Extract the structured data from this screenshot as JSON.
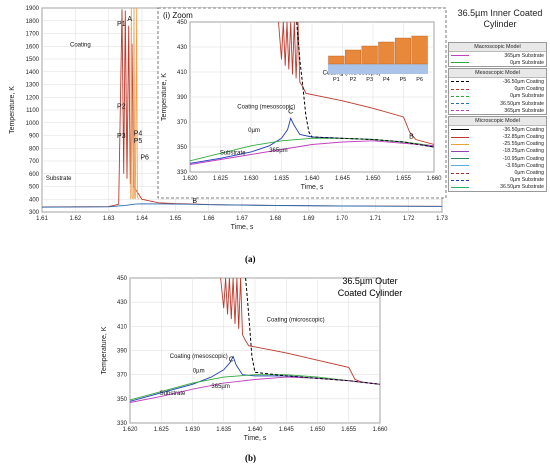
{
  "figure": {
    "title_a": "36.5µm Inner Coated Cylinder",
    "title_b": "36.5µm Outer Coated Cylinder",
    "caption_a": "(a)",
    "caption_b": "(b)",
    "zoom_title": "(i) Zoom"
  },
  "chart_data": [
    {
      "id": "main",
      "type": "line",
      "xlabel": "Time, s",
      "ylabel": "Temperature, K",
      "xlim": [
        1.61,
        1.73
      ],
      "ylim": [
        300,
        1900
      ],
      "xticks": [
        1.61,
        1.62,
        1.63,
        1.64,
        1.65,
        1.66,
        1.67,
        1.68,
        1.69,
        1.7,
        1.71,
        1.72,
        1.73
      ],
      "yticks": [
        300,
        400,
        500,
        600,
        700,
        800,
        900,
        1000,
        1100,
        1200,
        1300,
        1400,
        1500,
        1600,
        1700,
        1800,
        1900
      ],
      "grid": true,
      "annotations": [
        {
          "text": "A",
          "x": 1.6363,
          "y": 1800
        },
        {
          "text": "P1",
          "x": 1.6338,
          "y": 1760
        },
        {
          "text": "P2",
          "x": 1.6338,
          "y": 1110
        },
        {
          "text": "P3",
          "x": 1.6338,
          "y": 880
        },
        {
          "text": "P4",
          "x": 1.6388,
          "y": 900
        },
        {
          "text": "P5",
          "x": 1.6388,
          "y": 840
        },
        {
          "text": "P6",
          "x": 1.6408,
          "y": 710
        },
        {
          "text": "B",
          "x": 1.6558,
          "y": 370
        },
        {
          "text": "Coating",
          "x": 1.6215,
          "y": 1600
        },
        {
          "text": "Substrate",
          "x": 1.615,
          "y": 550
        }
      ],
      "series": [
        {
          "name": "Coating",
          "color": "#c0392b",
          "x": [
            1.61,
            1.63,
            1.633,
            1.634,
            1.6345,
            1.635,
            1.6355,
            1.636,
            1.6365,
            1.637,
            1.6375,
            1.638,
            1.64,
            1.645,
            1.65,
            1.6558,
            1.66,
            1.68,
            1.7,
            1.73
          ],
          "y": [
            340,
            342,
            360,
            1890,
            600,
            1880,
            560,
            1760,
            520,
            1620,
            500,
            480,
            400,
            372,
            366,
            362,
            358,
            352,
            348,
            345
          ]
        },
        {
          "name": "Substrate",
          "color": "#2b6cb0",
          "x": [
            1.61,
            1.63,
            1.635,
            1.638,
            1.64,
            1.65,
            1.6558,
            1.66,
            1.68,
            1.7,
            1.73
          ],
          "y": [
            338,
            341,
            352,
            362,
            364,
            362,
            360,
            357,
            351,
            347,
            344
          ]
        },
        {
          "name": "Coating peaks",
          "color": "#f0a050",
          "x": [
            1.6366,
            1.6368,
            1.637,
            1.6374,
            1.6376,
            1.6378,
            1.638,
            1.6384,
            1.6386,
            1.639
          ],
          "y": [
            400,
            1900,
            420,
            400,
            1900,
            420,
            400,
            1900,
            420,
            400
          ]
        }
      ]
    },
    {
      "id": "zoom",
      "type": "line",
      "xlabel": "Time, s",
      "ylabel": "Temperature, K",
      "xlim": [
        1.62,
        1.66
      ],
      "ylim": [
        330,
        450
      ],
      "xticks": [
        1.62,
        1.625,
        1.63,
        1.635,
        1.64,
        1.645,
        1.65,
        1.655,
        1.66
      ],
      "yticks": [
        330,
        350,
        370,
        390,
        410,
        430,
        450
      ],
      "grid": true,
      "annotations": [
        {
          "text": "Coating (microscopic)",
          "x": 1.6465,
          "y": 408
        },
        {
          "text": "Coating (mesoscopic)",
          "x": 1.6325,
          "y": 381
        },
        {
          "text": "C",
          "x": 1.6365,
          "y": 377
        },
        {
          "text": "0µm",
          "x": 1.6305,
          "y": 362
        },
        {
          "text": "365µm",
          "x": 1.6345,
          "y": 346
        },
        {
          "text": "Substrate",
          "x": 1.627,
          "y": 344
        },
        {
          "text": "B",
          "x": 1.6563,
          "y": 357
        }
      ],
      "inset_labels": [
        "P1",
        "P2",
        "P3",
        "P4",
        "P5",
        "P6"
      ],
      "series": [
        {
          "name": "Coating (microscopic)",
          "color": "#c0392b",
          "x": [
            1.6345,
            1.635,
            1.6353,
            1.6356,
            1.6359,
            1.6362,
            1.6365,
            1.6368,
            1.6371,
            1.6374,
            1.6377,
            1.638,
            1.6385,
            1.639,
            1.645,
            1.65,
            1.655,
            1.656,
            1.657,
            1.66
          ],
          "y": [
            450,
            420,
            450,
            415,
            450,
            412,
            450,
            408,
            450,
            405,
            450,
            402,
            398,
            393,
            387,
            381,
            374,
            362,
            356,
            352
          ]
        },
        {
          "name": "Coating (mesoscopic)",
          "color": "#1f3fbf",
          "x": [
            1.62,
            1.625,
            1.63,
            1.633,
            1.635,
            1.636,
            1.6365,
            1.637,
            1.638,
            1.64,
            1.645,
            1.65,
            1.655,
            1.66
          ],
          "y": [
            337,
            341,
            346,
            351,
            357,
            364,
            373,
            368,
            360,
            358,
            357,
            356,
            354,
            350
          ]
        },
        {
          "name": "0µm Substrate",
          "color": "#2eaa3a",
          "x": [
            1.62,
            1.625,
            1.63,
            1.635,
            1.64,
            1.645,
            1.65,
            1.655,
            1.66
          ],
          "y": [
            339,
            345,
            351,
            355,
            357,
            357,
            356,
            354,
            351
          ]
        },
        {
          "name": "365µm Substrate",
          "color": "#c040c0",
          "x": [
            1.62,
            1.625,
            1.63,
            1.635,
            1.64,
            1.645,
            1.65,
            1.655,
            1.66
          ],
          "y": [
            336,
            340,
            344,
            348,
            352,
            354,
            355,
            353,
            351
          ]
        },
        {
          "name": "Macroscopic Coating",
          "color": "#000000",
          "dash": true,
          "x": [
            1.6375,
            1.638,
            1.6385,
            1.639,
            1.6395,
            1.64,
            1.645,
            1.65,
            1.655,
            1.66
          ],
          "y": [
            450,
            420,
            398,
            375,
            362,
            358,
            357,
            356,
            354,
            350
          ]
        }
      ]
    },
    {
      "id": "bottom",
      "type": "line",
      "xlabel": "Time, s",
      "ylabel": "Temperature, K",
      "xlim": [
        1.62,
        1.66
      ],
      "ylim": [
        330,
        450
      ],
      "xticks": [
        1.62,
        1.625,
        1.63,
        1.635,
        1.64,
        1.645,
        1.65,
        1.655,
        1.66
      ],
      "yticks": [
        330,
        350,
        370,
        390,
        410,
        430,
        450
      ],
      "grid": true,
      "annotations": [
        {
          "text": "Coating (microscopic)",
          "x": 1.6465,
          "y": 414
        },
        {
          "text": "Coating (mesoscopic)",
          "x": 1.631,
          "y": 384
        },
        {
          "text": "C",
          "x": 1.6362,
          "y": 381
        },
        {
          "text": "0µm",
          "x": 1.631,
          "y": 372
        },
        {
          "text": "365µm",
          "x": 1.6345,
          "y": 359
        },
        {
          "text": "Substrate",
          "x": 1.6268,
          "y": 353
        }
      ],
      "series": [
        {
          "name": "Coating (microscopic)",
          "color": "#c0392b",
          "x": [
            1.6345,
            1.635,
            1.6353,
            1.6356,
            1.6359,
            1.6362,
            1.6365,
            1.6368,
            1.6371,
            1.6374,
            1.6377,
            1.638,
            1.6385,
            1.639,
            1.645,
            1.65,
            1.655,
            1.656,
            1.657,
            1.66
          ],
          "y": [
            450,
            425,
            450,
            420,
            450,
            416,
            450,
            412,
            450,
            408,
            450,
            403,
            398,
            394,
            388,
            382,
            376,
            366,
            364,
            362
          ]
        },
        {
          "name": "Coating (mesoscopic)",
          "color": "#1f3fbf",
          "x": [
            1.62,
            1.625,
            1.63,
            1.633,
            1.635,
            1.636,
            1.6365,
            1.637,
            1.638,
            1.64,
            1.645,
            1.65,
            1.655,
            1.66
          ],
          "y": [
            348,
            355,
            362,
            368,
            374,
            380,
            385,
            378,
            370,
            369,
            369,
            367,
            365,
            362
          ]
        },
        {
          "name": "0µm Substrate",
          "color": "#2eaa3a",
          "x": [
            1.62,
            1.625,
            1.63,
            1.635,
            1.64,
            1.645,
            1.65,
            1.655,
            1.66
          ],
          "y": [
            349,
            356,
            363,
            368,
            370,
            370,
            368,
            365,
            362
          ]
        },
        {
          "name": "365µm Substrate",
          "color": "#c040c0",
          "x": [
            1.62,
            1.625,
            1.63,
            1.635,
            1.64,
            1.645,
            1.65,
            1.655,
            1.66
          ],
          "y": [
            347,
            352,
            358,
            363,
            366,
            368,
            367,
            365,
            362
          ]
        },
        {
          "name": "Macroscopic Coating",
          "color": "#000000",
          "dash": true,
          "x": [
            1.6385,
            1.639,
            1.6395,
            1.64,
            1.645,
            1.65,
            1.655,
            1.66
          ],
          "y": [
            450,
            420,
            385,
            372,
            369,
            367,
            365,
            362
          ]
        }
      ]
    }
  ],
  "legend": {
    "groups": [
      {
        "title": "Macroscopic Model",
        "items": [
          {
            "label": "365µm Substrate",
            "color": "#c040c0",
            "dash": false
          },
          {
            "label": "0µm Substrate",
            "color": "#2eaa3a",
            "dash": false
          }
        ]
      },
      {
        "title": "Mesoscopic Model",
        "items": [
          {
            "label": "-36.50µm Coating",
            "color": "#000000",
            "dash": true
          },
          {
            "label": "0µm Coating",
            "color": "#c0392b",
            "dash": true
          },
          {
            "label": "0µm Substrate",
            "color": "#2eaa3a",
            "dash": true
          },
          {
            "label": "36.50µm Substrate",
            "color": "#2b6cb0",
            "dash": true
          },
          {
            "label": "365µm Substrate",
            "color": "#c040c0",
            "dash": true
          }
        ]
      },
      {
        "title": "Microscopic Model",
        "items": [
          {
            "label": "-36.50µm Coating",
            "color": "#000000",
            "dash": false
          },
          {
            "label": "-32.85µm Coating",
            "color": "#c0392b",
            "dash": false
          },
          {
            "label": "-25.55µm Coating",
            "color": "#e8a23a",
            "dash": false
          },
          {
            "label": "-18.25µm Coating",
            "color": "#8e44ad",
            "dash": false
          },
          {
            "label": "-10.95µm Coating",
            "color": "#2e8b57",
            "dash": false
          },
          {
            "label": "-3.65µm Coating",
            "color": "#5dade2",
            "dash": false
          },
          {
            "label": "0µm Coating",
            "color": "#a93226",
            "dash": true
          },
          {
            "label": "0µm Substrate",
            "color": "#1f3fbf",
            "dash": true
          },
          {
            "label": "36.50µm Substrate",
            "color": "#27ae60",
            "dash": false
          }
        ]
      }
    ]
  }
}
